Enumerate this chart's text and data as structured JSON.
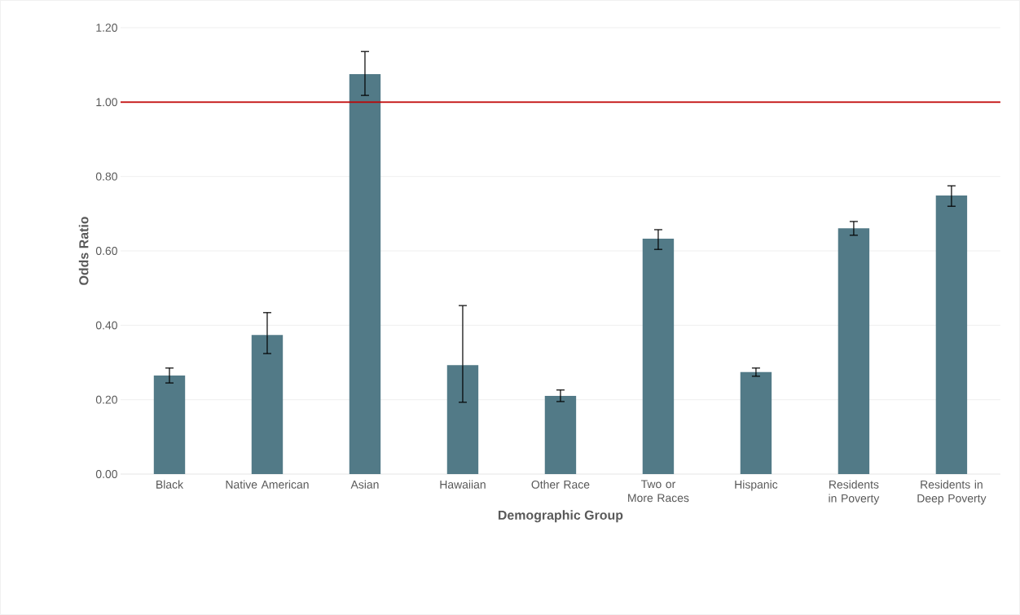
{
  "chart_data": {
    "type": "bar",
    "xlabel": "Demographic Group",
    "ylabel": "Odds Ratio",
    "categories": [
      "Black",
      "Native American",
      "Asian",
      "Hawaiian",
      "Other Race",
      "Two or More Races",
      "Hispanic",
      "Residents in Poverty",
      "Residents in Deep Poverty"
    ],
    "values": [
      0.265,
      0.374,
      1.075,
      0.293,
      0.21,
      0.633,
      0.274,
      0.661,
      0.749
    ],
    "errors": [
      [
        0.245,
        0.285
      ],
      [
        0.324,
        0.434
      ],
      [
        1.018,
        1.136
      ],
      [
        0.193,
        0.453
      ],
      [
        0.195,
        0.226
      ],
      [
        0.604,
        0.657
      ],
      [
        0.263,
        0.285
      ],
      [
        0.642,
        0.679
      ],
      [
        0.72,
        0.775
      ]
    ],
    "color": "#527a87",
    "ylim": [
      0,
      1.2
    ],
    "yticks": [
      {
        "value": 0,
        "label": "0.00"
      },
      {
        "value": 0.2,
        "label": "0.20"
      },
      {
        "value": 0.4,
        "label": "0.40"
      },
      {
        "value": 0.6,
        "label": "0.60"
      },
      {
        "value": 0.8,
        "label": "0.80"
      },
      {
        "value": 1.0,
        "label": "1.00"
      },
      {
        "value": 1.2,
        "label": "1.20"
      }
    ],
    "grid": "y",
    "ref_lines": [
      {
        "axis": "y",
        "value": 1.0,
        "color": "#c00000"
      }
    ]
  }
}
